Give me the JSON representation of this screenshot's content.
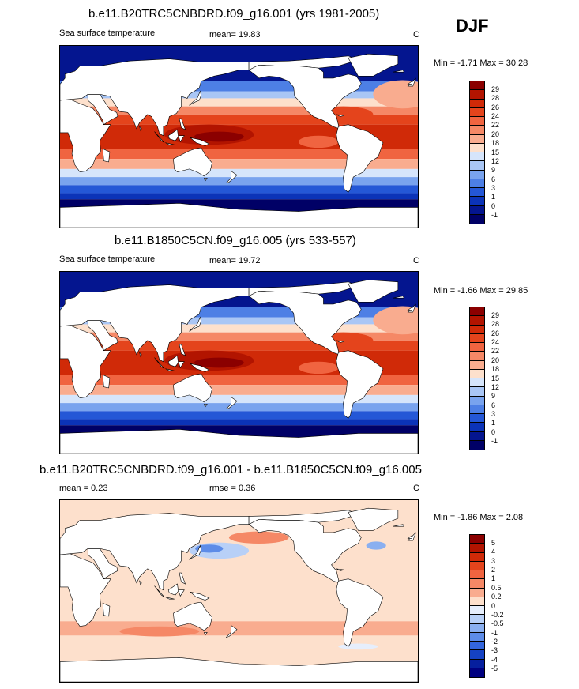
{
  "season": "DJF",
  "panels": [
    {
      "title": "b.e11.B20TRC5CNBDRD.f09_g16.001 (yrs 1981-2005)",
      "left_label": "Sea surface temperature",
      "center_label": "mean=  19.83",
      "unit": "C",
      "minmax": "Min = -1.71 Max =  30.28",
      "levels": [
        "29",
        "28",
        "26",
        "24",
        "22",
        "20",
        "18",
        "15",
        "12",
        "9",
        "6",
        "3",
        "1",
        "0",
        "-1"
      ],
      "colors": [
        "#8b0000",
        "#b21400",
        "#d02a08",
        "#e4441c",
        "#f06440",
        "#f58866",
        "#f9ac8f",
        "#fde0cc",
        "#d6e5fb",
        "#a9c6f5",
        "#79a3ee",
        "#4d7fe5",
        "#2457d6",
        "#0b33b8",
        "#04158f",
        "#000066"
      ]
    },
    {
      "title": "b.e11.B1850C5CN.f09_g16.005 (yrs 533-557)",
      "left_label": "Sea surface temperature",
      "center_label": "mean=  19.72",
      "unit": "C",
      "minmax": "Min = -1.66 Max =  29.85",
      "levels": [
        "29",
        "28",
        "26",
        "24",
        "22",
        "20",
        "18",
        "15",
        "12",
        "9",
        "6",
        "3",
        "1",
        "0",
        "-1"
      ],
      "colors": [
        "#8b0000",
        "#b21400",
        "#d02a08",
        "#e4441c",
        "#f06440",
        "#f58866",
        "#f9ac8f",
        "#fde0cc",
        "#d6e5fb",
        "#a9c6f5",
        "#79a3ee",
        "#4d7fe5",
        "#2457d6",
        "#0b33b8",
        "#04158f",
        "#000066"
      ]
    },
    {
      "title": "b.e11.B20TRC5CNBDRD.f09_g16.001 - b.e11.B1850C5CN.f09_g16.005",
      "left_label": "mean =   0.23",
      "center_label": "rmse =   0.36",
      "unit": "C",
      "minmax": "Min = -1.86 Max =   2.08",
      "levels": [
        "5",
        "4",
        "3",
        "2",
        "1",
        "0.5",
        "0.2",
        "0",
        "-0.2",
        "-0.5",
        "-1",
        "-2",
        "-3",
        "-4",
        "-5"
      ],
      "colors": [
        "#8b0000",
        "#b21400",
        "#d02a08",
        "#e4441c",
        "#f06440",
        "#f58866",
        "#f9ac8f",
        "#fde0cc",
        "#e6eefc",
        "#b8d0f7",
        "#8aaff0",
        "#5d8ce8",
        "#3366dd",
        "#1542c4",
        "#061f9e",
        "#000080"
      ]
    }
  ]
}
